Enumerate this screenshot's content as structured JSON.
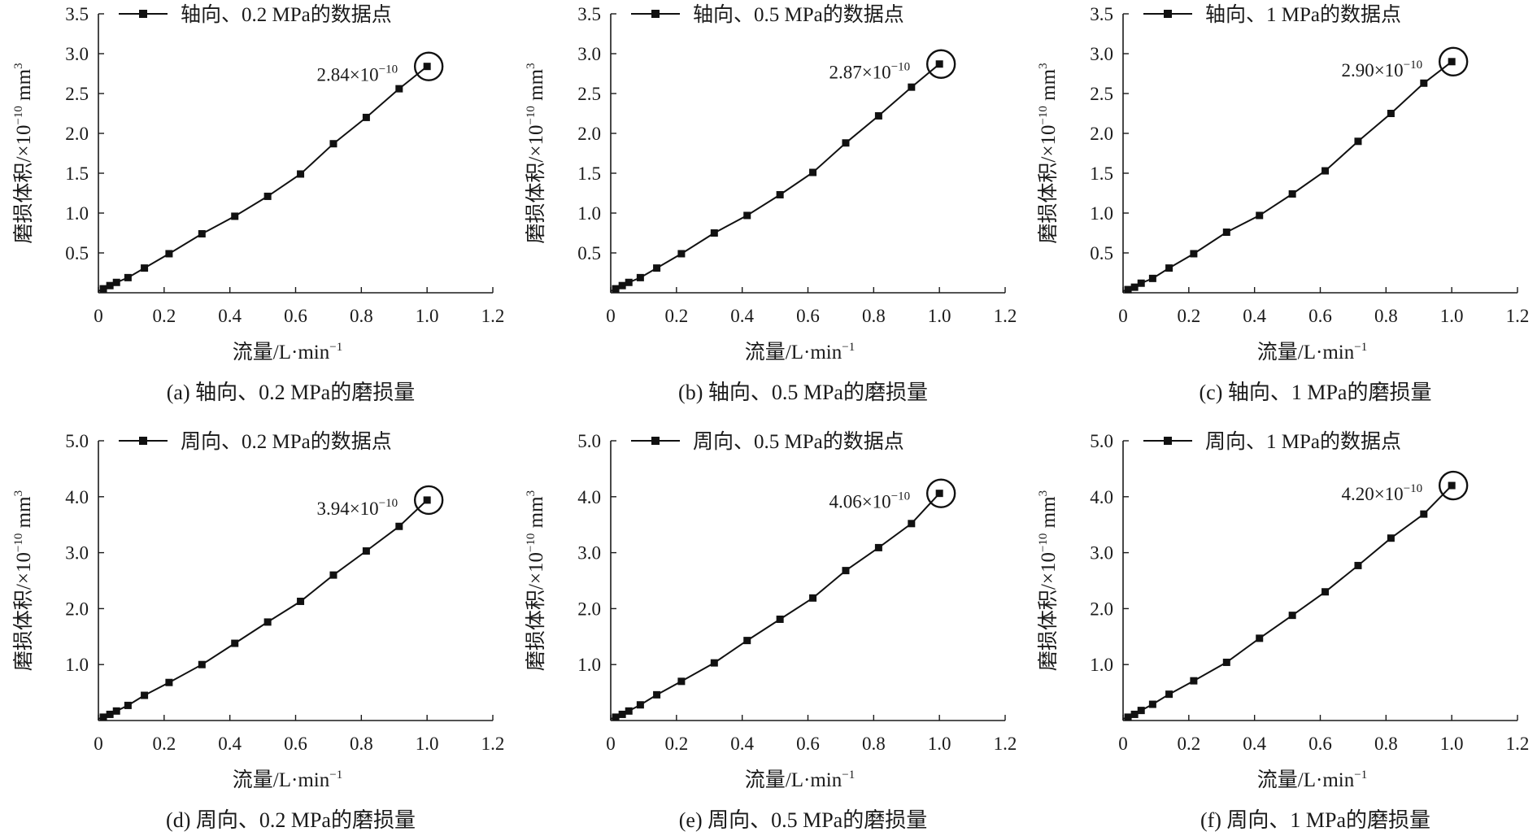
{
  "chart_data": [
    {
      "type": "line",
      "caption": "(a) 轴向、0.2 MPa的磨损量",
      "xlabel": "流量/L·min",
      "xlabel_sup": "−1",
      "ylabel": "磨损体积/×10",
      "ylabel_sup1": "−10",
      "ylabel_unit": " mm",
      "ylabel_sup2": "3",
      "xlim": [
        0,
        1.2
      ],
      "ylim": [
        0,
        3.5
      ],
      "x_ticks": [
        "0",
        "0.2",
        "0.4",
        "0.6",
        "0.8",
        "1.0",
        "1.2"
      ],
      "y_ticks": [
        "0.5",
        "1.0",
        "1.5",
        "2.0",
        "2.5",
        "3.0",
        "3.5"
      ],
      "y_tick_values": [
        0.5,
        1.0,
        1.5,
        2.0,
        2.5,
        3.0,
        3.5
      ],
      "legend": "轴向、0.2 MPa的数据点",
      "annotation": {
        "mantissa": "2.84×10",
        "exponent": "−10"
      },
      "series": [
        {
          "x": [
            0,
            0.015,
            0.035,
            0.055,
            0.09,
            0.14,
            0.215,
            0.315,
            0.415,
            0.515,
            0.615,
            0.715,
            0.815,
            0.915,
            1.0
          ],
          "y": [
            0.02,
            0.05,
            0.09,
            0.13,
            0.19,
            0.31,
            0.49,
            0.74,
            0.96,
            1.21,
            1.49,
            1.87,
            2.2,
            2.56,
            2.84
          ]
        }
      ]
    },
    {
      "type": "line",
      "caption": "(b) 轴向、0.5 MPa的磨损量",
      "xlabel": "流量/L·min",
      "xlabel_sup": "−1",
      "ylabel": "磨损体积/×10",
      "ylabel_sup1": "−10",
      "ylabel_unit": " mm",
      "ylabel_sup2": "3",
      "xlim": [
        0,
        1.2
      ],
      "ylim": [
        0,
        3.5
      ],
      "x_ticks": [
        "0",
        "0.2",
        "0.4",
        "0.6",
        "0.8",
        "1.0",
        "1.2"
      ],
      "y_ticks": [
        "0.5",
        "1.0",
        "1.5",
        "2.0",
        "2.5",
        "3.0",
        "3.5"
      ],
      "y_tick_values": [
        0.5,
        1.0,
        1.5,
        2.0,
        2.5,
        3.0,
        3.5
      ],
      "legend": "轴向、0.5 MPa的数据点",
      "annotation": {
        "mantissa": "2.87×10",
        "exponent": "−10"
      },
      "series": [
        {
          "x": [
            0,
            0.015,
            0.035,
            0.055,
            0.09,
            0.14,
            0.215,
            0.315,
            0.415,
            0.515,
            0.615,
            0.715,
            0.815,
            0.915,
            1.0
          ],
          "y": [
            0.02,
            0.05,
            0.09,
            0.13,
            0.19,
            0.31,
            0.49,
            0.75,
            0.97,
            1.23,
            1.51,
            1.88,
            2.22,
            2.58,
            2.87
          ]
        }
      ]
    },
    {
      "type": "line",
      "caption": "(c) 轴向、1 MPa的磨损量",
      "xlabel": "流量/L·min",
      "xlabel_sup": "−1",
      "ylabel": "磨损体积/×10",
      "ylabel_sup1": "−10",
      "ylabel_unit": " mm",
      "ylabel_sup2": "3",
      "xlim": [
        0,
        1.2
      ],
      "ylim": [
        0,
        3.5
      ],
      "x_ticks": [
        "0",
        "0.2",
        "0.4",
        "0.6",
        "0.8",
        "1.0",
        "1.2"
      ],
      "y_ticks": [
        "0.5",
        "1.0",
        "1.5",
        "2.0",
        "2.5",
        "3.0",
        "3.5"
      ],
      "y_tick_values": [
        0.5,
        1.0,
        1.5,
        2.0,
        2.5,
        3.0,
        3.5
      ],
      "legend": "轴向、1 MPa的数据点",
      "annotation": {
        "mantissa": "2.90×10",
        "exponent": "−10"
      },
      "series": [
        {
          "x": [
            0,
            0.015,
            0.035,
            0.055,
            0.09,
            0.14,
            0.215,
            0.315,
            0.415,
            0.515,
            0.615,
            0.715,
            0.815,
            0.915,
            1.0
          ],
          "y": [
            0.02,
            0.04,
            0.07,
            0.12,
            0.18,
            0.31,
            0.49,
            0.76,
            0.97,
            1.24,
            1.53,
            1.9,
            2.25,
            2.63,
            2.9
          ]
        }
      ]
    },
    {
      "type": "line",
      "caption": "(d) 周向、0.2 MPa的磨损量",
      "xlabel": "流量/L·min",
      "xlabel_sup": "−1",
      "ylabel": "磨损体积/×10",
      "ylabel_sup1": "−10",
      "ylabel_unit": " mm",
      "ylabel_sup2": "3",
      "xlim": [
        0,
        1.2
      ],
      "ylim": [
        0,
        5.0
      ],
      "x_ticks": [
        "0",
        "0.2",
        "0.4",
        "0.6",
        "0.8",
        "1.0",
        "1.2"
      ],
      "y_ticks": [
        "1.0",
        "2.0",
        "3.0",
        "4.0",
        "5.0"
      ],
      "y_tick_values": [
        1.0,
        2.0,
        3.0,
        4.0,
        5.0
      ],
      "legend": "周向、0.2 MPa的数据点",
      "annotation": {
        "mantissa": "3.94×10",
        "exponent": "−10"
      },
      "series": [
        {
          "x": [
            0,
            0.015,
            0.035,
            0.055,
            0.09,
            0.14,
            0.215,
            0.315,
            0.415,
            0.515,
            0.615,
            0.715,
            0.815,
            0.915,
            1.0
          ],
          "y": [
            0.03,
            0.06,
            0.11,
            0.17,
            0.27,
            0.45,
            0.68,
            1.0,
            1.38,
            1.76,
            2.13,
            2.6,
            3.03,
            3.47,
            3.94
          ]
        }
      ]
    },
    {
      "type": "line",
      "caption": "(e) 周向、0.5 MPa的磨损量",
      "xlabel": "流量/L·min",
      "xlabel_sup": "−1",
      "ylabel": "磨损体积/×10",
      "ylabel_sup1": "−10",
      "ylabel_unit": " mm",
      "ylabel_sup2": "3",
      "xlim": [
        0,
        1.2
      ],
      "ylim": [
        0,
        5.0
      ],
      "x_ticks": [
        "0",
        "0.2",
        "0.4",
        "0.6",
        "0.8",
        "1.0",
        "1.2"
      ],
      "y_ticks": [
        "1.0",
        "2.0",
        "3.0",
        "4.0",
        "5.0"
      ],
      "y_tick_values": [
        1.0,
        2.0,
        3.0,
        4.0,
        5.0
      ],
      "legend": "周向、0.5 MPa的数据点",
      "annotation": {
        "mantissa": "4.06×10",
        "exponent": "−10"
      },
      "series": [
        {
          "x": [
            0,
            0.015,
            0.035,
            0.055,
            0.09,
            0.14,
            0.215,
            0.315,
            0.415,
            0.515,
            0.615,
            0.715,
            0.815,
            0.915,
            1.0
          ],
          "y": [
            0.03,
            0.06,
            0.11,
            0.17,
            0.28,
            0.46,
            0.7,
            1.03,
            1.43,
            1.81,
            2.19,
            2.68,
            3.09,
            3.52,
            4.06
          ]
        }
      ]
    },
    {
      "type": "line",
      "caption": "(f) 周向、1 MPa的磨损量",
      "xlabel": "流量/L·min",
      "xlabel_sup": "−1",
      "ylabel": "磨损体积/×10",
      "ylabel_sup1": "−10",
      "ylabel_unit": " mm",
      "ylabel_sup2": "3",
      "xlim": [
        0,
        1.2
      ],
      "ylim": [
        0,
        5.0
      ],
      "x_ticks": [
        "0",
        "0.2",
        "0.4",
        "0.6",
        "0.8",
        "1.0",
        "1.2"
      ],
      "y_ticks": [
        "1.0",
        "2.0",
        "3.0",
        "4.0",
        "5.0"
      ],
      "y_tick_values": [
        1.0,
        2.0,
        3.0,
        4.0,
        5.0
      ],
      "legend": "周向、1 MPa的数据点",
      "annotation": {
        "mantissa": "4.20×10",
        "exponent": "−10"
      },
      "series": [
        {
          "x": [
            0,
            0.015,
            0.035,
            0.055,
            0.09,
            0.14,
            0.215,
            0.315,
            0.415,
            0.515,
            0.615,
            0.715,
            0.815,
            0.915,
            1.0
          ],
          "y": [
            0.03,
            0.06,
            0.11,
            0.18,
            0.29,
            0.47,
            0.71,
            1.04,
            1.47,
            1.88,
            2.3,
            2.77,
            3.26,
            3.69,
            4.2
          ]
        }
      ]
    }
  ]
}
